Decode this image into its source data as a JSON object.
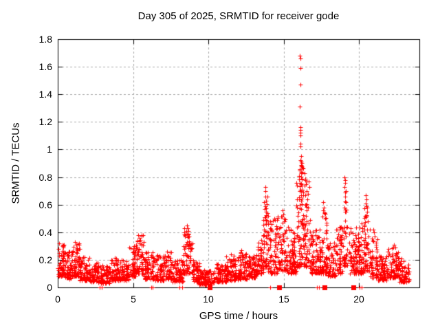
{
  "page": {
    "title": "Day 305 of 2025, SRMTID for receiver gode"
  },
  "chart_data": {
    "type": "scatter",
    "title": "Day 305 of 2025, SRMTID for receiver gode",
    "xlabel": "GPS time / hours",
    "ylabel": "SRMTID / TECUs",
    "xlim": [
      0,
      24
    ],
    "ylim": [
      0,
      1.8
    ],
    "xticks": [
      0,
      5,
      10,
      15,
      20
    ],
    "yticks": [
      0,
      0.2,
      0.4,
      0.6,
      0.8,
      1,
      1.2,
      1.4,
      1.6,
      1.8
    ],
    "ytick_labels": [
      "0",
      "0.2",
      "0.4",
      "0.6",
      "0.8",
      "1",
      "1.2",
      "1.4",
      "1.6",
      "1.8"
    ],
    "grid": true,
    "legend": "none",
    "marker": {
      "shape": "plus",
      "color": "#ff0000",
      "size": 7
    },
    "axis_color": "#000000",
    "grid_color": "#a9a9a9",
    "background": "#ffffff",
    "seed": 305,
    "note": "Dense noisy scatter (~2800 pts). band_segments = [startHour, endHour, yMin, yMax, count] envelopes read from the pixels; spike_points are the individually distinguishable high points; zero markers are the red marks on the x-axis.",
    "band_segments": [
      [
        0.0,
        0.45,
        0.08,
        0.32,
        60
      ],
      [
        0.45,
        0.95,
        0.06,
        0.26,
        60
      ],
      [
        0.95,
        1.45,
        0.08,
        0.33,
        65
      ],
      [
        1.45,
        2.1,
        0.05,
        0.22,
        70
      ],
      [
        2.1,
        2.7,
        0.04,
        0.18,
        65
      ],
      [
        2.7,
        3.45,
        0.03,
        0.16,
        80
      ],
      [
        3.45,
        3.95,
        0.05,
        0.23,
        55
      ],
      [
        3.95,
        4.75,
        0.05,
        0.2,
        85
      ],
      [
        4.75,
        5.15,
        0.08,
        0.3,
        50
      ],
      [
        5.15,
        5.7,
        0.1,
        0.38,
        65
      ],
      [
        5.7,
        6.45,
        0.06,
        0.26,
        80
      ],
      [
        6.45,
        7.1,
        0.05,
        0.24,
        70
      ],
      [
        7.1,
        7.55,
        0.06,
        0.26,
        50
      ],
      [
        7.55,
        8.35,
        0.04,
        0.2,
        85
      ],
      [
        8.35,
        8.95,
        0.1,
        0.45,
        70
      ],
      [
        8.95,
        9.4,
        0.04,
        0.2,
        50
      ],
      [
        9.4,
        10.45,
        0.02,
        0.13,
        110
      ],
      [
        10.45,
        11.2,
        0.04,
        0.17,
        80
      ],
      [
        11.2,
        12.0,
        0.05,
        0.23,
        85
      ],
      [
        12.0,
        12.55,
        0.06,
        0.26,
        60
      ],
      [
        12.55,
        13.25,
        0.07,
        0.24,
        75
      ],
      [
        13.25,
        13.65,
        0.1,
        0.36,
        50
      ],
      [
        13.65,
        13.95,
        0.15,
        0.66,
        45
      ],
      [
        13.95,
        14.55,
        0.1,
        0.5,
        70
      ],
      [
        14.55,
        15.15,
        0.12,
        0.52,
        70
      ],
      [
        15.15,
        15.85,
        0.1,
        0.42,
        80
      ],
      [
        15.85,
        16.35,
        0.15,
        0.92,
        90
      ],
      [
        16.35,
        16.75,
        0.15,
        0.8,
        55
      ],
      [
        16.75,
        17.15,
        0.1,
        0.42,
        50
      ],
      [
        17.15,
        17.55,
        0.1,
        0.38,
        50
      ],
      [
        17.55,
        17.9,
        0.1,
        0.58,
        45
      ],
      [
        17.9,
        18.45,
        0.08,
        0.34,
        60
      ],
      [
        18.45,
        18.95,
        0.1,
        0.44,
        55
      ],
      [
        18.95,
        19.25,
        0.15,
        0.7,
        40
      ],
      [
        19.25,
        19.95,
        0.1,
        0.44,
        75
      ],
      [
        19.95,
        20.35,
        0.1,
        0.48,
        50
      ],
      [
        20.35,
        20.75,
        0.12,
        0.6,
        50
      ],
      [
        20.75,
        21.25,
        0.07,
        0.38,
        55
      ],
      [
        21.25,
        21.85,
        0.05,
        0.24,
        65
      ],
      [
        21.85,
        22.65,
        0.07,
        0.3,
        85
      ],
      [
        22.65,
        23.3,
        0.04,
        0.21,
        70
      ]
    ],
    "spike_points": [
      [
        13.78,
        0.73
      ],
      [
        13.8,
        0.7
      ],
      [
        13.79,
        0.66
      ],
      [
        13.81,
        0.63
      ],
      [
        13.77,
        0.59
      ],
      [
        13.82,
        0.55
      ],
      [
        13.76,
        0.51
      ],
      [
        13.84,
        0.47
      ],
      [
        13.98,
        0.52
      ],
      [
        14.12,
        0.48
      ],
      [
        14.35,
        0.5
      ],
      [
        14.9,
        0.56
      ],
      [
        14.96,
        0.53
      ],
      [
        15.02,
        0.5
      ],
      [
        14.93,
        0.47
      ],
      [
        15.28,
        0.44
      ],
      [
        15.49,
        0.42
      ],
      [
        15.6,
        0.4
      ],
      [
        16.08,
        1.68
      ],
      [
        16.1,
        1.66
      ],
      [
        16.09,
        1.59
      ],
      [
        16.12,
        1.47
      ],
      [
        16.08,
        1.31
      ],
      [
        16.1,
        1.16
      ],
      [
        16.12,
        1.14
      ],
      [
        16.09,
        1.12
      ],
      [
        16.11,
        1.1
      ],
      [
        16.1,
        1.04
      ],
      [
        16.12,
        1.02
      ],
      [
        16.13,
        0.95
      ],
      [
        16.09,
        0.92
      ],
      [
        16.14,
        0.89
      ],
      [
        16.06,
        0.86
      ],
      [
        16.16,
        0.84
      ],
      [
        16.02,
        0.81
      ],
      [
        16.2,
        0.79
      ],
      [
        16.05,
        0.76
      ],
      [
        16.18,
        0.74
      ],
      [
        16.24,
        0.71
      ],
      [
        16.3,
        0.69
      ],
      [
        16.4,
        0.83
      ],
      [
        16.44,
        0.79
      ],
      [
        16.48,
        0.75
      ],
      [
        16.52,
        0.7
      ],
      [
        16.58,
        0.64
      ],
      [
        16.63,
        0.58
      ],
      [
        17.62,
        0.62
      ],
      [
        17.67,
        0.58
      ],
      [
        17.72,
        0.54
      ],
      [
        17.77,
        0.5
      ],
      [
        17.4,
        0.42
      ],
      [
        19.02,
        0.8
      ],
      [
        19.05,
        0.78
      ],
      [
        19.07,
        0.76
      ],
      [
        19.04,
        0.73
      ],
      [
        19.1,
        0.7
      ],
      [
        19.06,
        0.66
      ],
      [
        19.12,
        0.62
      ],
      [
        19.03,
        0.58
      ],
      [
        19.14,
        0.55
      ],
      [
        18.8,
        0.44
      ],
      [
        19.45,
        0.43
      ],
      [
        20.42,
        0.67
      ],
      [
        20.47,
        0.64
      ],
      [
        20.44,
        0.61
      ],
      [
        20.51,
        0.58
      ],
      [
        20.55,
        0.55
      ],
      [
        20.39,
        0.52
      ],
      [
        20.6,
        0.48
      ],
      [
        20.95,
        0.42
      ],
      [
        21.0,
        0.4
      ],
      [
        21.05,
        0.37
      ],
      [
        0.08,
        0.32
      ],
      [
        1.12,
        0.33
      ],
      [
        5.3,
        0.34
      ],
      [
        5.36,
        0.38
      ],
      [
        5.42,
        0.36
      ],
      [
        8.56,
        0.39
      ],
      [
        8.6,
        0.45
      ],
      [
        8.64,
        0.43
      ],
      [
        8.69,
        0.41
      ],
      [
        8.72,
        0.37
      ],
      [
        11.52,
        0.24
      ],
      [
        12.2,
        0.27
      ],
      [
        22.3,
        0.31
      ],
      [
        22.4,
        0.29
      ]
    ],
    "zero_dashes": [
      2.8,
      2.92,
      6.2,
      6.31,
      8.08,
      8.26,
      14.08,
      17.22,
      17.32,
      20.05,
      20.18
    ],
    "zero_squares": [
      10.08,
      14.67,
      17.7,
      19.63
    ]
  }
}
